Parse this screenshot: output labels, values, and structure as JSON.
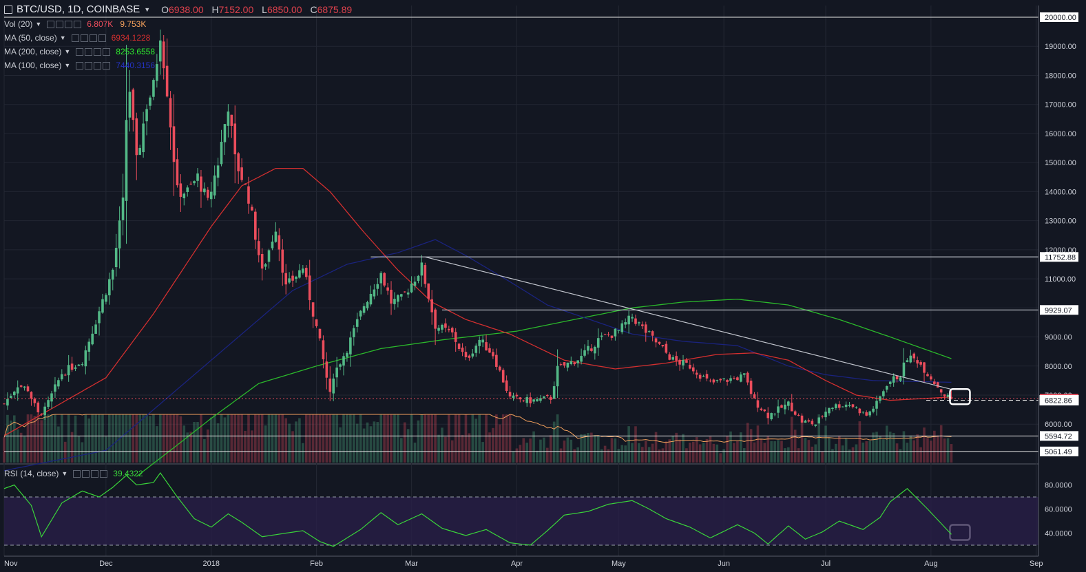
{
  "header": {
    "symbol": "BTC/USD, 1D, COINBASE",
    "open_label": "O",
    "open": "6938.00",
    "high_label": "H",
    "high": "7152.00",
    "low_label": "L",
    "low": "6850.00",
    "close_label": "C",
    "close": "6875.89"
  },
  "legends": {
    "vol": {
      "label": "Vol (20)",
      "value1": "6.807K",
      "value2": "9.753K"
    },
    "ma50": {
      "label": "MA (50, close)",
      "value": "6934.1228"
    },
    "ma200": {
      "label": "MA (200, close)",
      "value": "8253.6558"
    },
    "ma100": {
      "label": "MA (100, close)",
      "value": "7440.3156"
    },
    "rsi": {
      "label": "RSI (14, close)",
      "value": "39.4322"
    }
  },
  "colors": {
    "background": "#131722",
    "up": "#53b987",
    "down": "#eb4d5c",
    "ma50": "#d32f2f",
    "ma100": "#1a237e",
    "ma200": "#2bb82b",
    "vol_ma": "#f5a25d",
    "rsi": "#3ad43a",
    "trend": "#c0c4cc"
  },
  "chart_data": {
    "type": "candlestick",
    "x_start": "2017-11-01",
    "x_ticks": [
      "Nov",
      "Dec",
      "2018",
      "Feb",
      "Mar",
      "Apr",
      "May",
      "Jun",
      "Jul",
      "Aug",
      "Sep"
    ],
    "y_ticks": [
      "20000.00",
      "19000.00",
      "18000.00",
      "17000.00",
      "16000.00",
      "15000.00",
      "14000.00",
      "13000.00",
      "12000.00",
      "11000.00",
      "10000.00",
      "9000.00",
      "8000.00",
      "7000.00",
      "6000.00"
    ],
    "ylim": [
      5000,
      20000
    ],
    "price_labels": [
      {
        "text": "20000.00",
        "value": 20000,
        "line": "white"
      },
      {
        "text": "11752.88",
        "value": 11752.88,
        "line": "white"
      },
      {
        "text": "9929.07",
        "value": 9929.07,
        "line": "white"
      },
      {
        "text": "6875.89",
        "value": 6875.89,
        "line": "last"
      },
      {
        "text": "6822.86",
        "value": 6822.86,
        "line": "dashed"
      },
      {
        "text": "5594.72",
        "value": 5594.72,
        "line": "white"
      },
      {
        "text": "5061.49",
        "value": 5061.49,
        "line": "white"
      }
    ],
    "rsi_ticks": [
      "80.0000",
      "60.0000",
      "40.0000"
    ],
    "rsi_levels": [
      70,
      30
    ],
    "rsi_ylim": [
      25,
      95
    ],
    "close_anchors": [
      [
        "2017-11-01",
        6700
      ],
      [
        "2017-11-05",
        7350
      ],
      [
        "2017-11-08",
        7200
      ],
      [
        "2017-11-11",
        6350
      ],
      [
        "2017-11-13",
        6500
      ],
      [
        "2017-11-18",
        7750
      ],
      [
        "2017-11-24",
        8200
      ],
      [
        "2017-11-29",
        9900
      ],
      [
        "2017-12-03",
        11300
      ],
      [
        "2017-12-06",
        13600
      ],
      [
        "2017-12-07",
        16500
      ],
      [
        "2017-12-08",
        17500
      ],
      [
        "2017-12-10",
        15000
      ],
      [
        "2017-12-13",
        17000
      ],
      [
        "2017-12-15",
        17600
      ],
      [
        "2017-12-17",
        19500
      ],
      [
        "2017-12-19",
        17500
      ],
      [
        "2017-12-22",
        14000
      ],
      [
        "2017-12-25",
        14000
      ],
      [
        "2017-12-28",
        14500
      ],
      [
        "2017-12-31",
        13600
      ],
      [
        "2018-01-03",
        15000
      ],
      [
        "2018-01-06",
        17000
      ],
      [
        "2018-01-08",
        15100
      ],
      [
        "2018-01-10",
        14500
      ],
      [
        "2018-01-12",
        13800
      ],
      [
        "2018-01-16",
        11200
      ],
      [
        "2018-01-20",
        12800
      ],
      [
        "2018-01-23",
        10700
      ],
      [
        "2018-01-28",
        11400
      ],
      [
        "2018-02-02",
        8800
      ],
      [
        "2018-02-05",
        7000
      ],
      [
        "2018-02-06",
        7700
      ],
      [
        "2018-02-10",
        8600
      ],
      [
        "2018-02-15",
        10100
      ],
      [
        "2018-02-20",
        11200
      ],
      [
        "2018-02-23",
        10200
      ],
      [
        "2018-02-26",
        10300
      ],
      [
        "2018-03-04",
        11400
      ],
      [
        "2018-03-08",
        9400
      ],
      [
        "2018-03-13",
        9100
      ],
      [
        "2018-03-17",
        8200
      ],
      [
        "2018-03-21",
        8900
      ],
      [
        "2018-03-25",
        8400
      ],
      [
        "2018-03-30",
        6900
      ],
      [
        "2018-04-05",
        6800
      ],
      [
        "2018-04-11",
        6900
      ],
      [
        "2018-04-13",
        7900
      ],
      [
        "2018-04-20",
        8300
      ],
      [
        "2018-04-25",
        8900
      ],
      [
        "2018-05-01",
        9200
      ],
      [
        "2018-05-05",
        9700
      ],
      [
        "2018-05-08",
        9300
      ],
      [
        "2018-05-13",
        8700
      ],
      [
        "2018-05-17",
        8200
      ],
      [
        "2018-05-22",
        8000
      ],
      [
        "2018-05-28",
        7400
      ],
      [
        "2018-06-01",
        7500
      ],
      [
        "2018-06-07",
        7650
      ],
      [
        "2018-06-10",
        6800
      ],
      [
        "2018-06-14",
        6300
      ],
      [
        "2018-06-20",
        6700
      ],
      [
        "2018-06-24",
        6100
      ],
      [
        "2018-06-28",
        6000
      ],
      [
        "2018-07-02",
        6600
      ],
      [
        "2018-07-08",
        6700
      ],
      [
        "2018-07-13",
        6300
      ],
      [
        "2018-07-16",
        6700
      ],
      [
        "2018-07-19",
        7400
      ],
      [
        "2018-07-23",
        7700
      ],
      [
        "2018-07-25",
        8300
      ],
      [
        "2018-07-28",
        8200
      ],
      [
        "2018-08-01",
        7600
      ],
      [
        "2018-08-05",
        7000
      ],
      [
        "2018-08-07",
        6876
      ]
    ],
    "ma50_anchors": [
      [
        "2017-11-01",
        5600
      ],
      [
        "2017-12-01",
        7600
      ],
      [
        "2017-12-15",
        9800
      ],
      [
        "2018-01-01",
        12800
      ],
      [
        "2018-01-10",
        14200
      ],
      [
        "2018-01-20",
        14800
      ],
      [
        "2018-01-28",
        14800
      ],
      [
        "2018-02-05",
        14000
      ],
      [
        "2018-02-15",
        12600
      ],
      [
        "2018-02-25",
        11300
      ],
      [
        "2018-03-07",
        10200
      ],
      [
        "2018-03-17",
        9600
      ],
      [
        "2018-03-30",
        9100
      ],
      [
        "2018-04-15",
        8200
      ],
      [
        "2018-04-30",
        7900
      ],
      [
        "2018-05-15",
        8100
      ],
      [
        "2018-05-30",
        8400
      ],
      [
        "2018-06-10",
        8450
      ],
      [
        "2018-06-20",
        8200
      ],
      [
        "2018-07-01",
        7500
      ],
      [
        "2018-07-10",
        7000
      ],
      [
        "2018-07-20",
        6820
      ],
      [
        "2018-08-07",
        6934
      ]
    ],
    "ma100_anchors": [
      [
        "2017-11-01",
        4400
      ],
      [
        "2017-12-01",
        5100
      ],
      [
        "2017-12-20",
        7000
      ],
      [
        "2018-01-10",
        9100
      ],
      [
        "2018-01-25",
        10600
      ],
      [
        "2018-02-10",
        11500
      ],
      [
        "2018-02-25",
        11900
      ],
      [
        "2018-03-08",
        12350
      ],
      [
        "2018-03-17",
        11800
      ],
      [
        "2018-03-30",
        10900
      ],
      [
        "2018-04-10",
        10100
      ],
      [
        "2018-04-25",
        9500
      ],
      [
        "2018-05-05",
        9100
      ],
      [
        "2018-05-20",
        8850
      ],
      [
        "2018-06-05",
        8700
      ],
      [
        "2018-06-20",
        8000
      ],
      [
        "2018-07-01",
        7700
      ],
      [
        "2018-07-15",
        7500
      ],
      [
        "2018-08-07",
        7440
      ]
    ],
    "ma200_anchors": [
      [
        "2017-12-10",
        4200
      ],
      [
        "2017-12-20",
        5100
      ],
      [
        "2018-01-01",
        6200
      ],
      [
        "2018-01-15",
        7400
      ],
      [
        "2018-02-01",
        8000
      ],
      [
        "2018-02-20",
        8600
      ],
      [
        "2018-03-10",
        8900
      ],
      [
        "2018-04-01",
        9200
      ],
      [
        "2018-04-20",
        9650
      ],
      [
        "2018-05-05",
        10000
      ],
      [
        "2018-05-20",
        10200
      ],
      [
        "2018-06-05",
        10300
      ],
      [
        "2018-06-20",
        10100
      ],
      [
        "2018-07-05",
        9600
      ],
      [
        "2018-07-20",
        9000
      ],
      [
        "2018-08-07",
        8254
      ]
    ],
    "trendlines": [
      {
        "from": [
          "2018-03-05",
          11752.88
        ],
        "to": [
          "2018-08-07",
          7200
        ],
        "style": "trend"
      },
      {
        "from": [
          "2018-02-17",
          11752.88
        ],
        "to": [
          "2018-09-30",
          11752.88
        ],
        "style": "level"
      },
      {
        "from": [
          "2018-03-10",
          9929.07
        ],
        "to": [
          "2018-09-30",
          9929.07
        ],
        "style": "level"
      }
    ],
    "rsi_anchors": [
      [
        "2017-11-01",
        77
      ],
      [
        "2017-11-04",
        80
      ],
      [
        "2017-11-09",
        63
      ],
      [
        "2017-11-12",
        37
      ],
      [
        "2017-11-18",
        65
      ],
      [
        "2017-11-24",
        75
      ],
      [
        "2017-11-29",
        70
      ],
      [
        "2017-12-03",
        78
      ],
      [
        "2017-12-07",
        88
      ],
      [
        "2017-12-10",
        80
      ],
      [
        "2017-12-15",
        82
      ],
      [
        "2017-12-17",
        90
      ],
      [
        "2017-12-22",
        70
      ],
      [
        "2017-12-27",
        52
      ],
      [
        "2018-01-01",
        45
      ],
      [
        "2018-01-06",
        56
      ],
      [
        "2018-01-10",
        49
      ],
      [
        "2018-01-16",
        37
      ],
      [
        "2018-01-23",
        40
      ],
      [
        "2018-01-28",
        42
      ],
      [
        "2018-02-02",
        33
      ],
      [
        "2018-02-06",
        29
      ],
      [
        "2018-02-14",
        43
      ],
      [
        "2018-02-20",
        57
      ],
      [
        "2018-02-25",
        47
      ],
      [
        "2018-03-04",
        56
      ],
      [
        "2018-03-10",
        44
      ],
      [
        "2018-03-17",
        38
      ],
      [
        "2018-03-23",
        43
      ],
      [
        "2018-03-30",
        32
      ],
      [
        "2018-04-05",
        30
      ],
      [
        "2018-04-10",
        42
      ],
      [
        "2018-04-15",
        55
      ],
      [
        "2018-04-22",
        58
      ],
      [
        "2018-04-28",
        64
      ],
      [
        "2018-05-05",
        67
      ],
      [
        "2018-05-10",
        60
      ],
      [
        "2018-05-15",
        52
      ],
      [
        "2018-05-22",
        45
      ],
      [
        "2018-05-28",
        36
      ],
      [
        "2018-06-05",
        47
      ],
      [
        "2018-06-10",
        40
      ],
      [
        "2018-06-14",
        31
      ],
      [
        "2018-06-20",
        46
      ],
      [
        "2018-06-25",
        35
      ],
      [
        "2018-06-30",
        41
      ],
      [
        "2018-07-05",
        50
      ],
      [
        "2018-07-12",
        43
      ],
      [
        "2018-07-17",
        53
      ],
      [
        "2018-07-20",
        66
      ],
      [
        "2018-07-25",
        77
      ],
      [
        "2018-07-31",
        60
      ],
      [
        "2018-08-04",
        48
      ],
      [
        "2018-08-07",
        39
      ]
    ],
    "highlight_boxes": [
      {
        "date": "2018-08-07",
        "value": 6875,
        "pane": "price"
      },
      {
        "date": "2018-08-07",
        "value": 40,
        "pane": "rsi"
      }
    ]
  }
}
